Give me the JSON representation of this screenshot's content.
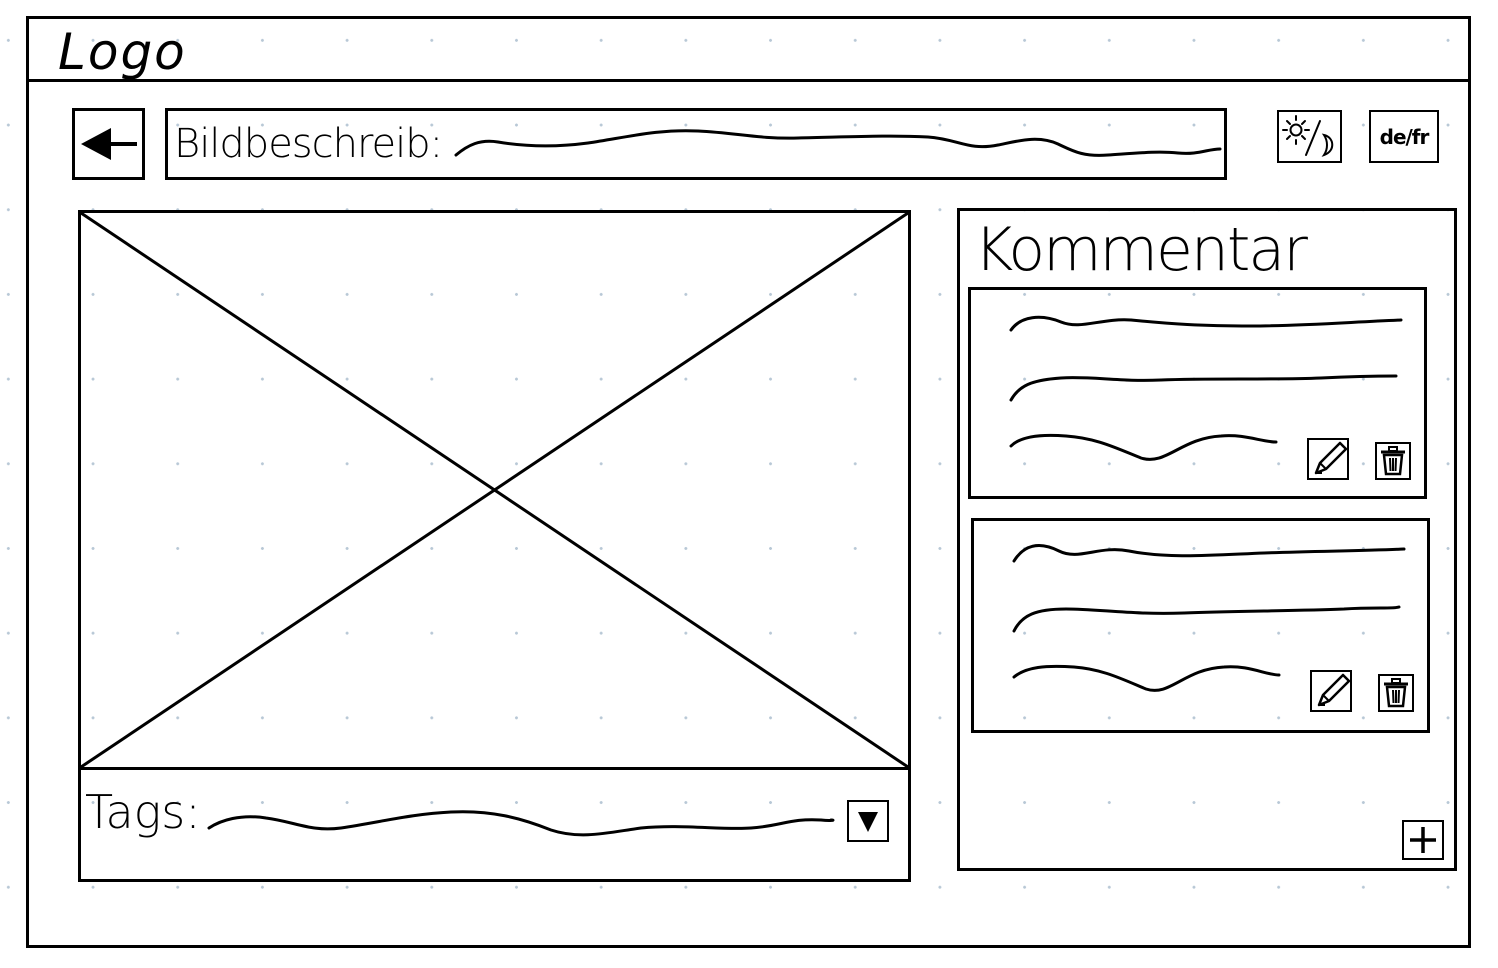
{
  "header": {
    "logo_text": "Logo"
  },
  "toolbar": {
    "back_icon": "arrow-left-icon",
    "description_label": "Bildbeschreib:",
    "description_value_placeholder": "scribbled-text",
    "theme_toggle_icon": "sun-moon-icon",
    "language_toggle_label": "de/fr"
  },
  "image_viewer": {
    "placeholder_icon": "image-placeholder-icon"
  },
  "tags": {
    "label": "Tags:",
    "value_placeholder": "scribbled-text",
    "dropdown_icon": "triangle-down-icon"
  },
  "comments": {
    "title": "Kommentar",
    "items": [
      {
        "lines": [
          "scribbled-text",
          "scribbled-text",
          "scribbled-text"
        ],
        "edit_icon": "pencil-icon",
        "delete_icon": "trash-icon"
      },
      {
        "lines": [
          "scribbled-text",
          "scribbled-text",
          "scribbled-text"
        ],
        "edit_icon": "pencil-icon",
        "delete_icon": "trash-icon"
      }
    ],
    "add_icon": "plus-icon"
  },
  "colors": {
    "ink": "#000000",
    "paper": "#ffffff",
    "grid_dot": "#b8c8d6"
  }
}
